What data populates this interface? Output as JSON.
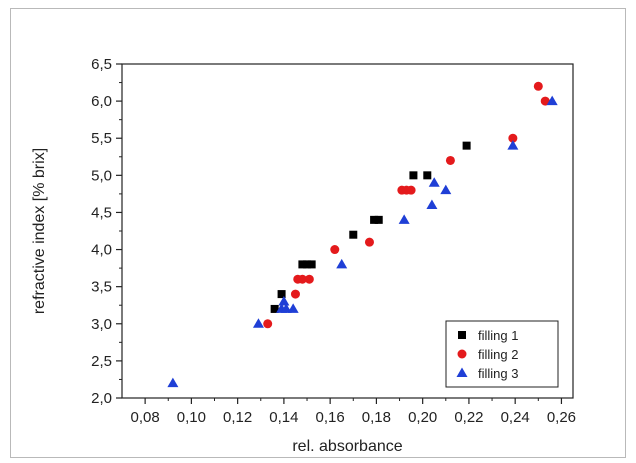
{
  "chart_data": {
    "type": "scatter",
    "xlabel": "rel. absorbance",
    "ylabel": "refractive index [% brix]",
    "xlim": [
      0.07,
      0.265
    ],
    "ylim": [
      2.0,
      6.5
    ],
    "x_ticks": [
      "0,08",
      "0,10",
      "0,12",
      "0,14",
      "0,16",
      "0,18",
      "0,20",
      "0,22",
      "0,24",
      "0,26"
    ],
    "y_ticks": [
      "2,0",
      "2,5",
      "3,0",
      "3,5",
      "4,0",
      "4,5",
      "5,0",
      "5,5",
      "6,0",
      "6,5"
    ],
    "grid": false,
    "legend_position": "bottom-right",
    "series": [
      {
        "name": "filling 1",
        "marker": "square",
        "color": "#000000",
        "points": [
          [
            0.136,
            3.2
          ],
          [
            0.139,
            3.4
          ],
          [
            0.148,
            3.8
          ],
          [
            0.15,
            3.8
          ],
          [
            0.152,
            3.8
          ],
          [
            0.17,
            4.2
          ],
          [
            0.179,
            4.4
          ],
          [
            0.181,
            4.4
          ],
          [
            0.196,
            5.0
          ],
          [
            0.202,
            5.0
          ],
          [
            0.219,
            5.4
          ]
        ]
      },
      {
        "name": "filling 2",
        "marker": "circle",
        "color": "#e41a1c",
        "points": [
          [
            0.133,
            3.0
          ],
          [
            0.145,
            3.4
          ],
          [
            0.146,
            3.6
          ],
          [
            0.148,
            3.6
          ],
          [
            0.151,
            3.6
          ],
          [
            0.162,
            4.0
          ],
          [
            0.177,
            4.1
          ],
          [
            0.191,
            4.8
          ],
          [
            0.193,
            4.8
          ],
          [
            0.195,
            4.8
          ],
          [
            0.212,
            5.2
          ],
          [
            0.239,
            5.5
          ],
          [
            0.25,
            6.2
          ],
          [
            0.253,
            6.0
          ]
        ]
      },
      {
        "name": "filling 3",
        "marker": "triangle",
        "color": "#1f3fd6",
        "points": [
          [
            0.092,
            2.2
          ],
          [
            0.129,
            3.0
          ],
          [
            0.139,
            3.2
          ],
          [
            0.14,
            3.3
          ],
          [
            0.141,
            3.2
          ],
          [
            0.144,
            3.2
          ],
          [
            0.165,
            3.8
          ],
          [
            0.192,
            4.4
          ],
          [
            0.204,
            4.6
          ],
          [
            0.205,
            4.9
          ],
          [
            0.21,
            4.8
          ],
          [
            0.239,
            5.4
          ],
          [
            0.256,
            6.0
          ]
        ]
      }
    ]
  }
}
